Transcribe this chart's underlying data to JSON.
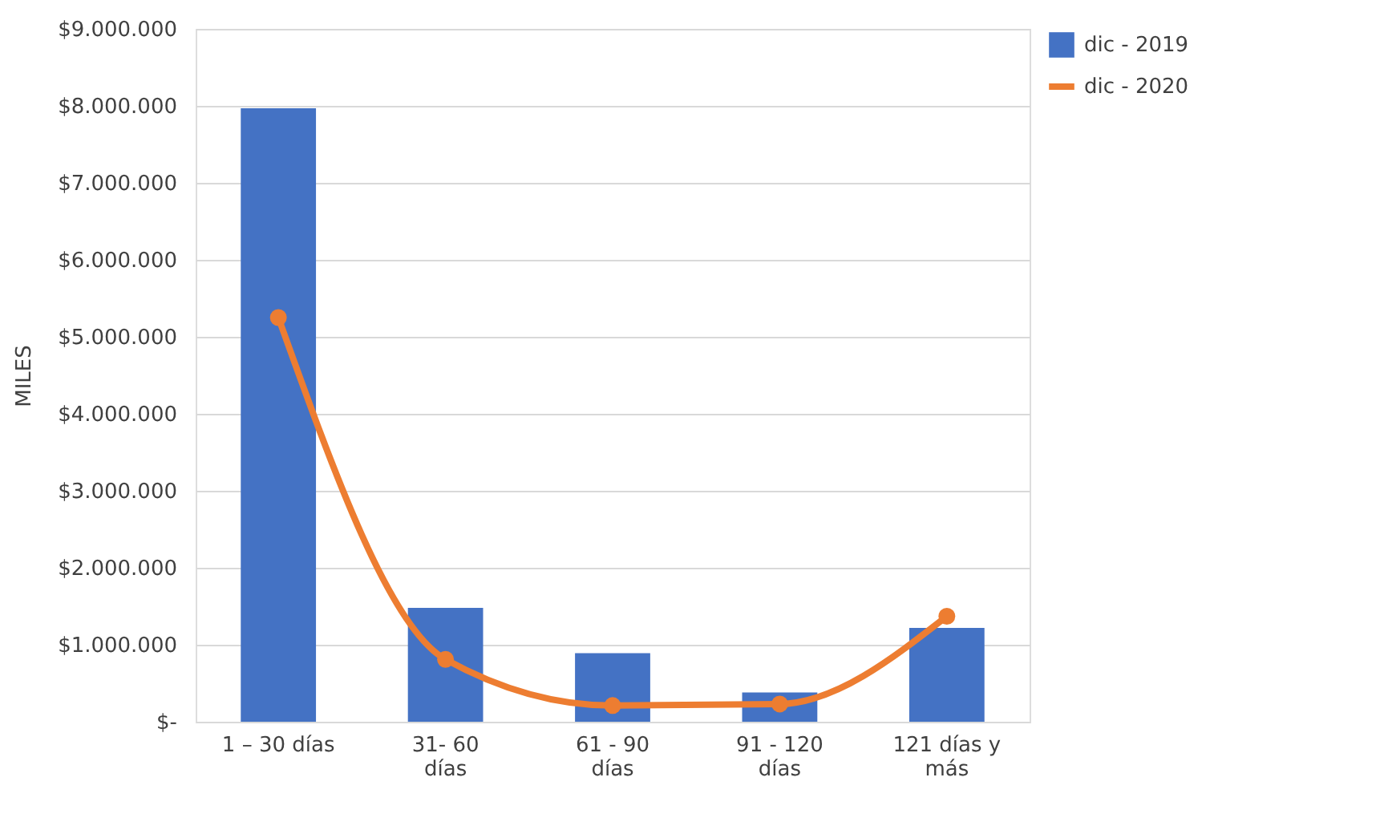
{
  "chart_data": {
    "type": "bar",
    "categories": [
      "1 – 30 días",
      "31- 60\ndías",
      "61 - 90\ndías",
      "91 - 120\ndías",
      "121 días y\nmás"
    ],
    "ylabel": "MILES",
    "series": [
      {
        "name": "dic - 2019",
        "color": "#4472c4",
        "values": [
          7970000,
          1480000,
          890000,
          380000,
          1220000
        ]
      },
      {
        "name": "dic - 2020",
        "type": "line",
        "color": "#ed7d31",
        "values": [
          5250000,
          810000,
          210000,
          230000,
          1370000
        ]
      }
    ],
    "ylim": [
      0,
      9000000
    ],
    "yticks": [
      {
        "value": 0,
        "label": "$-"
      },
      {
        "value": 1000000,
        "label": "$1.000.000"
      },
      {
        "value": 2000000,
        "label": "$2.000.000"
      },
      {
        "value": 3000000,
        "label": "$3.000.000"
      },
      {
        "value": 4000000,
        "label": "$4.000.000"
      },
      {
        "value": 5000000,
        "label": "$5.000.000"
      },
      {
        "value": 6000000,
        "label": "$6.000.000"
      },
      {
        "value": 7000000,
        "label": "$7.000.000"
      },
      {
        "value": 8000000,
        "label": "$8.000.000"
      },
      {
        "value": 9000000,
        "label": "$9.000.000"
      }
    ],
    "grid": "y",
    "legend": "right",
    "marker": "circle",
    "line_style": "solid"
  }
}
